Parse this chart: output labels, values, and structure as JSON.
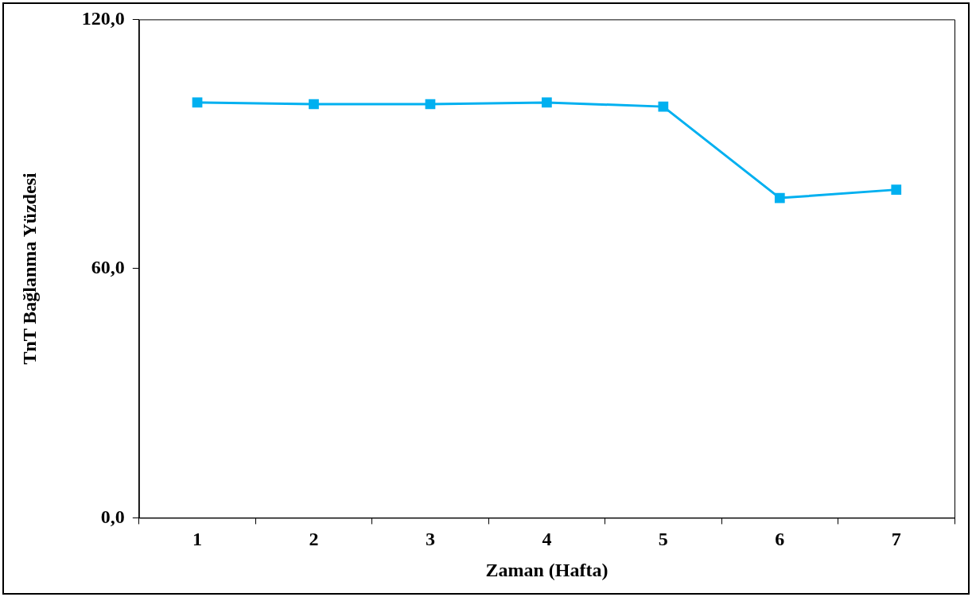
{
  "chart_data": {
    "type": "line",
    "xlabel": "Zaman (Hafta)",
    "ylabel": "TnT Bağlanma Yüzdesi",
    "categories": [
      "1",
      "2",
      "3",
      "4",
      "5",
      "6",
      "7"
    ],
    "series": [
      {
        "color": "#00b0f0",
        "values": [
          100.0,
          99.6,
          99.6,
          100.0,
          99.0,
          77.0,
          79.0
        ]
      }
    ],
    "ylim": [
      0,
      120
    ],
    "yticks": [
      {
        "value": 0,
        "label": "0,0"
      },
      {
        "value": 60,
        "label": "60,0"
      },
      {
        "value": 120,
        "label": "120,0"
      }
    ],
    "marker": "square",
    "line_style": "solid",
    "grid": false,
    "legend": false
  }
}
